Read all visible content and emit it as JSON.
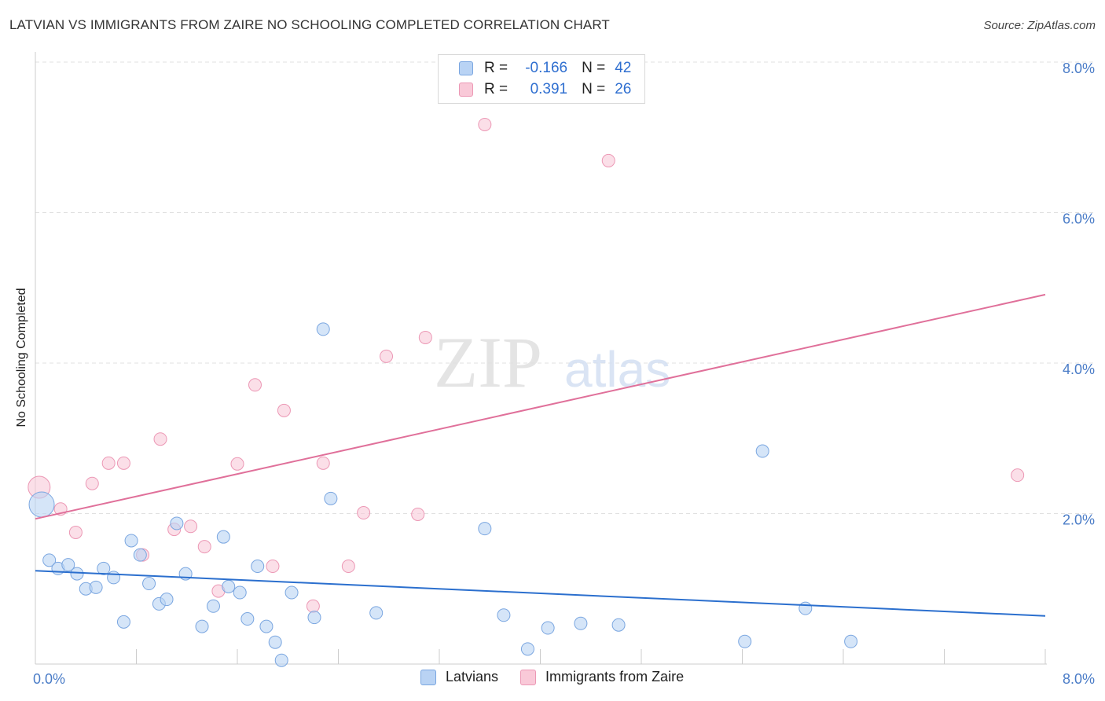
{
  "header": {
    "title": "LATVIAN VS IMMIGRANTS FROM ZAIRE NO SCHOOLING COMPLETED CORRELATION CHART",
    "source": "Source: ZipAtlas.com"
  },
  "watermark": {
    "part1": "ZIP",
    "part2": "atlas"
  },
  "legend_top": [
    {
      "r_label": "R =",
      "r_value": "-0.166",
      "n_label": "N =",
      "n_value": "42"
    },
    {
      "r_label": "R =",
      "r_value": "0.391",
      "n_label": "N =",
      "n_value": "26"
    }
  ],
  "legend_bottom": [
    {
      "label": "Latvians"
    },
    {
      "label": "Immigrants from Zaire"
    }
  ],
  "colors": {
    "blue_fill": "#b9d3f4",
    "blue_stroke": "#7aa6e0",
    "blue_line": "#2b6fce",
    "pink_fill": "#f9c9d8",
    "pink_stroke": "#ec98b5",
    "pink_line": "#e0709a",
    "grid": "#e0e0e0",
    "tick_text": "#4a7cc7"
  },
  "chart_data": {
    "type": "scatter",
    "title": "LATVIAN VS IMMIGRANTS FROM ZAIRE NO SCHOOLING COMPLETED CORRELATION CHART",
    "xlabel": "",
    "ylabel": "No Schooling Completed",
    "xlim": [
      0,
      8
    ],
    "ylim": [
      0,
      8
    ],
    "y_ticks": [
      2,
      4,
      6,
      8
    ],
    "y_tick_labels": [
      "2.0%",
      "4.0%",
      "6.0%",
      "8.0%"
    ],
    "x_tick_labels": [
      "0.0%",
      "8.0%"
    ],
    "series": [
      {
        "name": "Latvians",
        "r": -0.166,
        "n": 42,
        "trend": {
          "x": [
            0,
            8
          ],
          "y": [
            1.24,
            0.64
          ]
        },
        "points": [
          {
            "x": 0.05,
            "y": 2.12,
            "big": true
          },
          {
            "x": 0.11,
            "y": 1.38,
            "big": false
          },
          {
            "x": 0.18,
            "y": 1.27
          },
          {
            "x": 0.26,
            "y": 1.32
          },
          {
            "x": 0.33,
            "y": 1.2
          },
          {
            "x": 0.4,
            "y": 1.0
          },
          {
            "x": 0.48,
            "y": 1.02
          },
          {
            "x": 0.54,
            "y": 1.27
          },
          {
            "x": 0.62,
            "y": 1.15
          },
          {
            "x": 0.7,
            "y": 0.56
          },
          {
            "x": 0.76,
            "y": 1.64
          },
          {
            "x": 0.83,
            "y": 1.45
          },
          {
            "x": 0.9,
            "y": 1.07
          },
          {
            "x": 0.98,
            "y": 0.8
          },
          {
            "x": 1.04,
            "y": 0.86
          },
          {
            "x": 1.12,
            "y": 1.87
          },
          {
            "x": 1.19,
            "y": 1.2
          },
          {
            "x": 1.32,
            "y": 0.5
          },
          {
            "x": 1.41,
            "y": 0.77
          },
          {
            "x": 1.49,
            "y": 1.69
          },
          {
            "x": 1.53,
            "y": 1.03
          },
          {
            "x": 1.62,
            "y": 0.95
          },
          {
            "x": 1.68,
            "y": 0.6
          },
          {
            "x": 1.76,
            "y": 1.3
          },
          {
            "x": 1.83,
            "y": 0.5
          },
          {
            "x": 1.9,
            "y": 0.29
          },
          {
            "x": 1.95,
            "y": 0.05
          },
          {
            "x": 2.03,
            "y": 0.95
          },
          {
            "x": 2.21,
            "y": 0.62
          },
          {
            "x": 2.28,
            "y": 4.45
          },
          {
            "x": 2.34,
            "y": 2.2
          },
          {
            "x": 2.7,
            "y": 0.68
          },
          {
            "x": 3.56,
            "y": 1.8
          },
          {
            "x": 3.71,
            "y": 0.65
          },
          {
            "x": 3.9,
            "y": 0.2
          },
          {
            "x": 4.06,
            "y": 0.48
          },
          {
            "x": 4.32,
            "y": 0.54
          },
          {
            "x": 4.62,
            "y": 0.52
          },
          {
            "x": 5.62,
            "y": 0.3
          },
          {
            "x": 5.76,
            "y": 2.83
          },
          {
            "x": 6.1,
            "y": 0.74
          },
          {
            "x": 6.46,
            "y": 0.3
          }
        ]
      },
      {
        "name": "Immigrants from Zaire",
        "r": 0.391,
        "n": 26,
        "trend": {
          "x": [
            0,
            8
          ],
          "y": [
            1.93,
            4.91
          ]
        },
        "points": [
          {
            "x": 0.03,
            "y": 2.35,
            "big": true
          },
          {
            "x": 0.2,
            "y": 2.06
          },
          {
            "x": 0.32,
            "y": 1.75
          },
          {
            "x": 0.45,
            "y": 2.4
          },
          {
            "x": 0.58,
            "y": 2.67
          },
          {
            "x": 0.7,
            "y": 2.67
          },
          {
            "x": 0.85,
            "y": 1.45
          },
          {
            "x": 0.99,
            "y": 2.99
          },
          {
            "x": 1.1,
            "y": 1.79
          },
          {
            "x": 1.23,
            "y": 1.83
          },
          {
            "x": 1.34,
            "y": 1.56
          },
          {
            "x": 1.45,
            "y": 0.97
          },
          {
            "x": 1.6,
            "y": 2.66
          },
          {
            "x": 1.74,
            "y": 3.71
          },
          {
            "x": 1.88,
            "y": 1.3
          },
          {
            "x": 1.97,
            "y": 3.37
          },
          {
            "x": 2.2,
            "y": 0.77
          },
          {
            "x": 2.28,
            "y": 2.67
          },
          {
            "x": 2.48,
            "y": 1.3
          },
          {
            "x": 2.6,
            "y": 2.01
          },
          {
            "x": 2.78,
            "y": 4.09
          },
          {
            "x": 3.03,
            "y": 1.99
          },
          {
            "x": 3.09,
            "y": 4.34
          },
          {
            "x": 3.56,
            "y": 7.17
          },
          {
            "x": 4.54,
            "y": 6.69
          },
          {
            "x": 7.78,
            "y": 2.51
          }
        ]
      }
    ]
  }
}
